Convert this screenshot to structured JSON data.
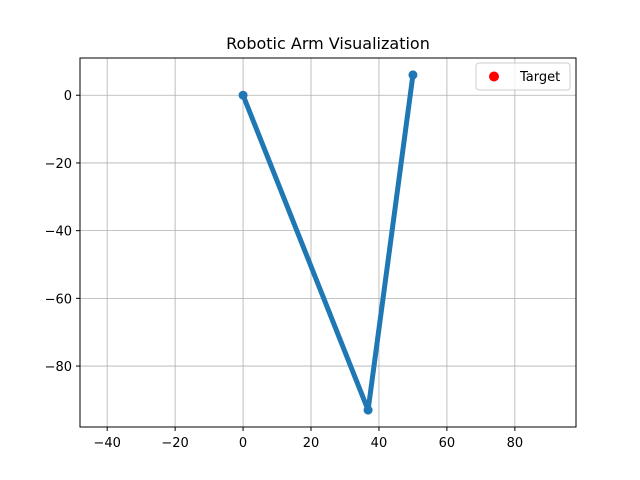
{
  "chart_data": {
    "type": "line",
    "title": "Robotic Arm Visualization",
    "xlabel": "",
    "ylabel": "",
    "xlim": [
      -48,
      98
    ],
    "ylim": [
      -98,
      11
    ],
    "grid": true,
    "x_ticks": [
      -40,
      -20,
      0,
      20,
      40,
      60,
      80
    ],
    "y_ticks": [
      0,
      -20,
      -40,
      -60,
      -80
    ],
    "x_tick_labels": [
      "−40",
      "−20",
      "0",
      "20",
      "40",
      "60",
      "80"
    ],
    "y_tick_labels": [
      "0",
      "−20",
      "−40",
      "−60",
      "−80"
    ],
    "series": [
      {
        "type": "line",
        "color": "#1f77b4",
        "x": [
          0,
          36.8,
          50
        ],
        "y": [
          0,
          -93,
          6
        ]
      },
      {
        "name": "Target",
        "type": "scatter",
        "color": "#ff0000",
        "x": [],
        "y": []
      }
    ],
    "legend": {
      "placement": "top-right",
      "entries": [
        {
          "label": "Target",
          "color": "#ff0000",
          "marker": "circle"
        }
      ]
    }
  }
}
